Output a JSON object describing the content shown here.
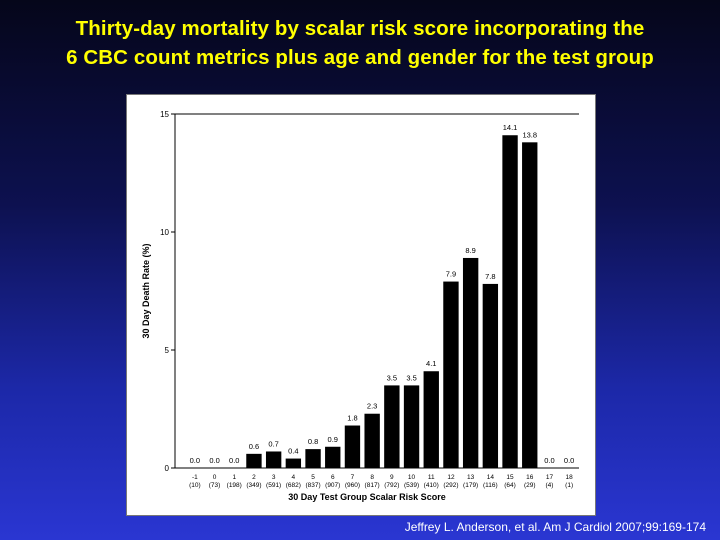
{
  "slide": {
    "title_line1": "Thirty-day mortality by scalar risk score incorporating the",
    "title_line2": "6 CBC count metrics plus age and gender for the test group",
    "citation": "Jeffrey L. Anderson, et al. Am J Cardiol 2007;99:169-174",
    "title_color": "#ffff00",
    "background_top": "#05061a",
    "background_bottom": "#2a36d2"
  },
  "chart_data": {
    "type": "bar",
    "title": "",
    "xlabel": "30 Day Test Group Scalar Risk Score",
    "ylabel": "30 Day Death Rate (%)",
    "ylim": [
      0,
      15
    ],
    "yticks": [
      "0",
      "5",
      "10",
      "15"
    ],
    "categories": [
      "-1",
      "0",
      "1",
      "2",
      "3",
      "4",
      "5",
      "6",
      "7",
      "8",
      "9",
      "10",
      "11",
      "12",
      "13",
      "14",
      "15",
      "16",
      "17",
      "18"
    ],
    "counts": [
      "(10)",
      "(73)",
      "(198)",
      "(349)",
      "(591)",
      "(682)",
      "(837)",
      "(907)",
      "(960)",
      "(817)",
      "(792)",
      "(539)",
      "(410)",
      "(292)",
      "(179)",
      "(116)",
      "(64)",
      "(29)",
      "(4)",
      "(1)"
    ],
    "values": [
      0.0,
      0.0,
      0.0,
      0.6,
      0.7,
      0.4,
      0.8,
      0.9,
      1.8,
      2.3,
      3.5,
      3.5,
      4.1,
      7.9,
      8.9,
      7.8,
      14.1,
      13.8,
      0.0,
      0.0
    ],
    "value_labels": [
      "0.0",
      "0.0",
      "0.0",
      "0.6",
      "0.7",
      "0.4",
      "0.8",
      "0.9",
      "1.8",
      "2.3",
      "3.5",
      "3.5",
      "4.1",
      "7.9",
      "8.9",
      "7.8",
      "14.1",
      "13.8",
      "0.0",
      "0.0"
    ],
    "bar_color": "#000000",
    "grid": false,
    "legend": "none"
  }
}
